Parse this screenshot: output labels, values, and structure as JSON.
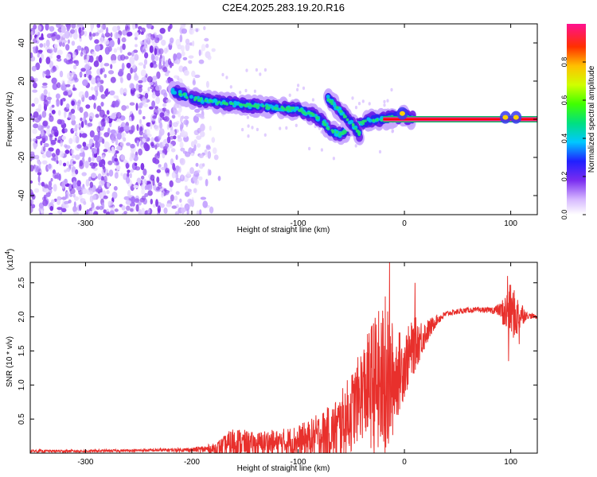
{
  "title": "C2E4.2025.283.19.20.R16",
  "colors": {
    "snr_line": "#e8302c",
    "ridge": "#ff0000",
    "noise": "#8a2be2",
    "axis": "#000000"
  },
  "chart_data": [
    {
      "type": "heatmap",
      "name": "spectrogram",
      "xlabel": "Height of straight line (km)",
      "ylabel": "Frequency (Hz)",
      "xlim": [
        -352,
        125
      ],
      "ylim": [
        -50,
        50
      ],
      "xticks": [
        -300,
        -200,
        -100,
        0,
        100
      ],
      "yticks": [
        -40,
        -20,
        0,
        20,
        40
      ],
      "xtick_labels": [
        "-300",
        "-200",
        "-100",
        "0",
        "100"
      ],
      "ytick_labels": [
        "-40",
        "-20",
        "0",
        "20",
        "40"
      ],
      "colorbar": {
        "label": "Normalized spectral amplitude",
        "range": [
          0,
          1
        ],
        "ticks": [
          0,
          0.2,
          0.4,
          0.6,
          0.8
        ],
        "tick_labels": [
          "0.0",
          "0.2",
          "0.4",
          "0.6",
          "0.8"
        ]
      },
      "noise_region_x": [
        -352,
        -190
      ],
      "signal_track": [
        {
          "x": -218,
          "f": 15
        },
        {
          "x": -200,
          "f": 11
        },
        {
          "x": -180,
          "f": 9
        },
        {
          "x": -160,
          "f": 8
        },
        {
          "x": -140,
          "f": 7
        },
        {
          "x": -120,
          "f": 6
        },
        {
          "x": -100,
          "f": 5
        },
        {
          "x": -85,
          "f": 2
        },
        {
          "x": -75,
          "f": -2
        },
        {
          "x": -70,
          "f": -6
        },
        {
          "x": -60,
          "f": -8
        },
        {
          "x": -50,
          "f": -4
        },
        {
          "x": -40,
          "f": -2
        },
        {
          "x": -30,
          "f": 0
        },
        {
          "x": -20,
          "f": 0
        },
        {
          "x": -10,
          "f": 1
        },
        {
          "x": -2,
          "f": 2
        },
        {
          "x": 10,
          "f": 0
        },
        {
          "x": 125,
          "f": 0
        }
      ],
      "secondary_track": [
        {
          "x": -72,
          "f": 11
        },
        {
          "x": -60,
          "f": 4
        },
        {
          "x": -50,
          "f": -2
        },
        {
          "x": -42,
          "f": -8
        }
      ],
      "ridge": {
        "x_start": -20,
        "x_end": 125,
        "f": 0
      },
      "bright_spots": [
        {
          "x": -2,
          "f": 3
        },
        {
          "x": 95,
          "f": 1
        },
        {
          "x": 105,
          "f": 1
        }
      ]
    },
    {
      "type": "line",
      "name": "snr",
      "xlabel": "Height of straight line (km)",
      "ylabel": "SNR (10 * v/v)",
      "multiplier": "(x10",
      "multiplier_exp": "4",
      "multiplier_close": ")",
      "xlim": [
        -352,
        125
      ],
      "ylim": [
        0,
        2.8
      ],
      "xticks": [
        -300,
        -200,
        -100,
        0,
        100
      ],
      "yticks": [
        0.5,
        1.0,
        1.5,
        2.0,
        2.5
      ],
      "xtick_labels": [
        "-300",
        "-200",
        "-100",
        "0",
        "100"
      ],
      "ytick_labels": [
        "0.5",
        "1.0",
        "1.5",
        "2.0",
        "2.5"
      ],
      "series": [
        {
          "name": "SNR",
          "x": [
            -352,
            -300,
            -250,
            -200,
            -180,
            -170,
            -160,
            -150,
            -140,
            -130,
            -120,
            -110,
            -100,
            -90,
            -80,
            -70,
            -60,
            -50,
            -45,
            -40,
            -35,
            -30,
            -25,
            -20,
            -15,
            -10,
            -5,
            0,
            10,
            20,
            30,
            40,
            60,
            80,
            90,
            95,
            100,
            105,
            110,
            115,
            125
          ],
          "base": [
            0.03,
            0.03,
            0.04,
            0.05,
            0.06,
            0.1,
            0.15,
            0.14,
            0.12,
            0.15,
            0.14,
            0.16,
            0.17,
            0.2,
            0.25,
            0.3,
            0.4,
            0.6,
            0.75,
            0.9,
            0.95,
            1.0,
            1.0,
            1.0,
            1.0,
            1.1,
            1.2,
            1.3,
            1.6,
            1.75,
            1.95,
            2.05,
            2.1,
            2.1,
            2.1,
            2.05,
            2.1,
            2.0,
            2.05,
            2.02,
            2.0
          ],
          "noise": [
            0.02,
            0.02,
            0.02,
            0.03,
            0.08,
            0.15,
            0.25,
            0.2,
            0.18,
            0.2,
            0.2,
            0.22,
            0.25,
            0.28,
            0.35,
            0.4,
            0.5,
            0.6,
            0.6,
            0.7,
            0.8,
            1.0,
            1.1,
            1.2,
            1.1,
            0.8,
            0.6,
            0.5,
            0.4,
            0.2,
            0.08,
            0.04,
            0.04,
            0.04,
            0.1,
            0.3,
            0.4,
            0.35,
            0.2,
            0.05,
            0.03
          ],
          "peaks": [
            {
              "x": -14,
              "y": 2.8
            },
            {
              "x": -18,
              "y": 2.3
            },
            {
              "x": 10,
              "y": 2.5
            },
            {
              "x": 97,
              "y": 2.6
            },
            {
              "x": 98,
              "y": 1.35
            },
            {
              "x": 108,
              "y": 1.6
            }
          ]
        }
      ]
    }
  ]
}
